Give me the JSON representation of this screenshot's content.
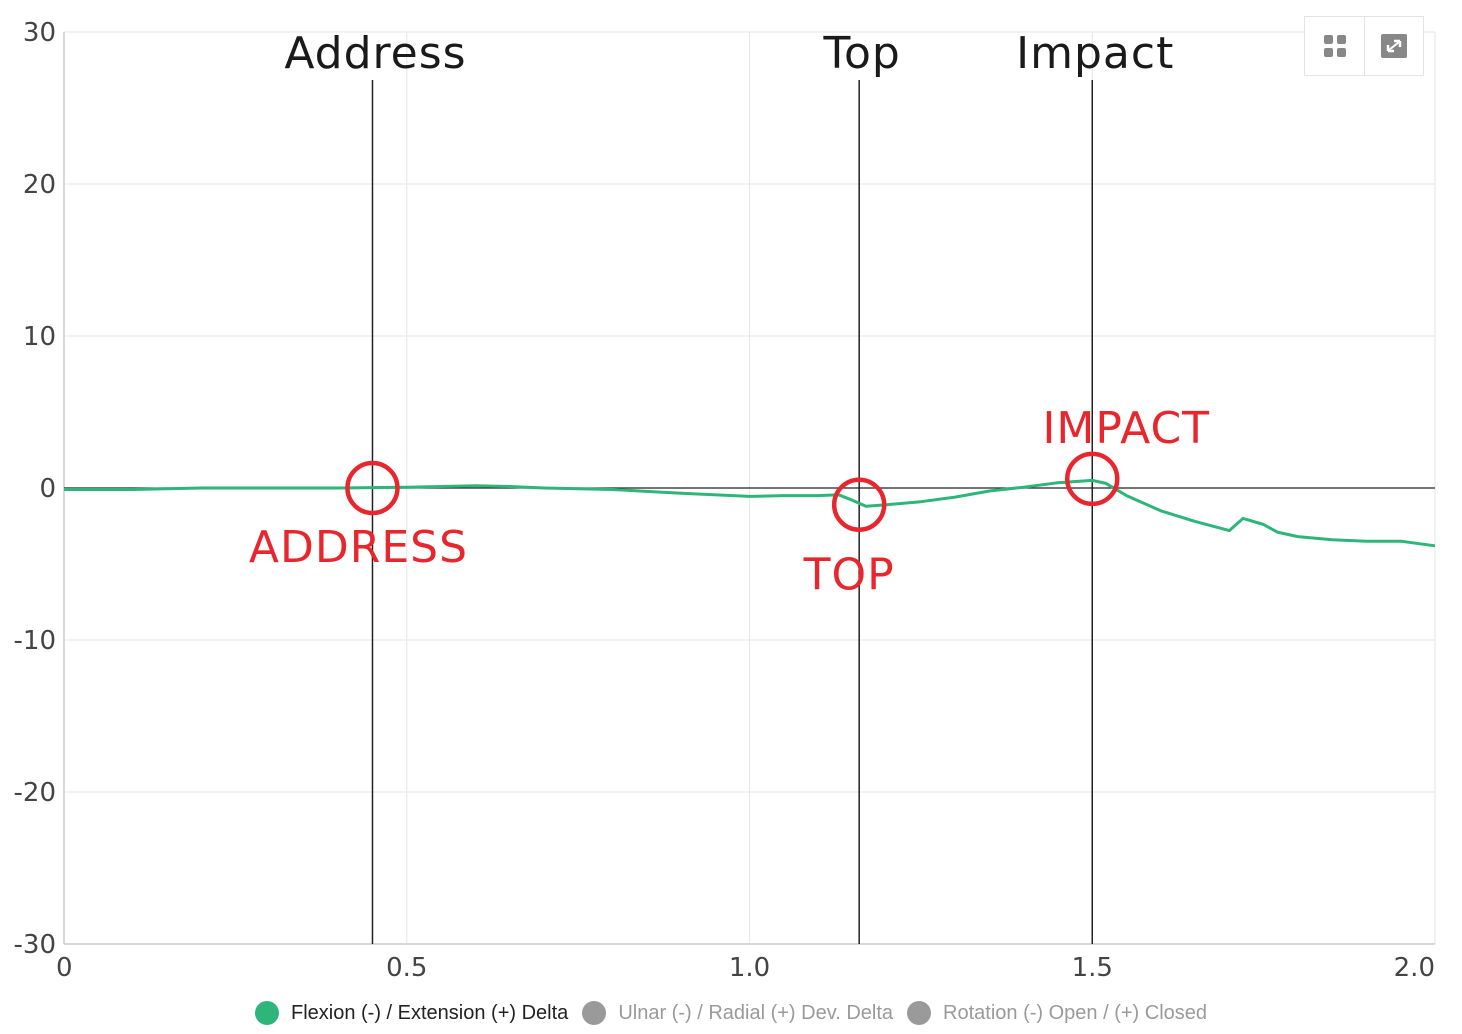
{
  "chart_data": {
    "type": "line",
    "xlim": [
      0,
      2.0
    ],
    "ylim": [
      -30,
      30
    ],
    "x_ticks": [
      "0",
      "0.5",
      "1.0",
      "1.5",
      "2.0"
    ],
    "x_tick_values": [
      0,
      0.5,
      1.0,
      1.5,
      2.0
    ],
    "y_ticks": [
      "30",
      "20",
      "10",
      "0",
      "-10",
      "-20",
      "-30"
    ],
    "y_tick_values": [
      30,
      20,
      10,
      0,
      -10,
      -20,
      -30
    ],
    "grid": true,
    "legend_position": "bottom-center",
    "series": [
      {
        "name": "Flexion (-) / Extension (+) Delta",
        "color": "#2eb57a",
        "visible": true,
        "points": [
          [
            0,
            -0.1
          ],
          [
            0.1,
            -0.1
          ],
          [
            0.2,
            0
          ],
          [
            0.3,
            0
          ],
          [
            0.4,
            0
          ],
          [
            0.5,
            0.05
          ],
          [
            0.55,
            0.1
          ],
          [
            0.6,
            0.15
          ],
          [
            0.65,
            0.1
          ],
          [
            0.7,
            0
          ],
          [
            0.8,
            -0.1
          ],
          [
            0.9,
            -0.35
          ],
          [
            1.0,
            -0.55
          ],
          [
            1.05,
            -0.5
          ],
          [
            1.1,
            -0.5
          ],
          [
            1.13,
            -0.45
          ],
          [
            1.15,
            -0.8
          ],
          [
            1.17,
            -1.2
          ],
          [
            1.2,
            -1.1
          ],
          [
            1.25,
            -0.9
          ],
          [
            1.3,
            -0.6
          ],
          [
            1.35,
            -0.2
          ],
          [
            1.4,
            0.05
          ],
          [
            1.45,
            0.35
          ],
          [
            1.5,
            0.5
          ],
          [
            1.52,
            0.3
          ],
          [
            1.55,
            -0.5
          ],
          [
            1.6,
            -1.5
          ],
          [
            1.65,
            -2.2
          ],
          [
            1.7,
            -2.8
          ],
          [
            1.72,
            -2.0
          ],
          [
            1.75,
            -2.4
          ],
          [
            1.77,
            -2.9
          ],
          [
            1.8,
            -3.2
          ],
          [
            1.85,
            -3.4
          ],
          [
            1.9,
            -3.5
          ],
          [
            1.95,
            -3.5
          ],
          [
            2.0,
            -3.8
          ]
        ]
      },
      {
        "name": "Ulnar (-) / Radial (+) Dev. Delta",
        "color": "#999999",
        "visible": false
      },
      {
        "name": "Rotation (-) Open / (+) Closed",
        "color": "#999999",
        "visible": false
      }
    ],
    "phase_markers": [
      {
        "label": "Address",
        "x": 0.45
      },
      {
        "label": "Top",
        "x": 1.16
      },
      {
        "label": "Impact",
        "x": 1.5
      }
    ],
    "annotations": [
      {
        "text": "ADDRESS",
        "x": 0.45,
        "y": 0,
        "color": "#e8262d",
        "text_position": "below"
      },
      {
        "text": "TOP",
        "x": 1.16,
        "y": -1.1,
        "color": "#e8262d",
        "text_position": "below"
      },
      {
        "text": "IMPACT",
        "x": 1.5,
        "y": 0.6,
        "color": "#e8262d",
        "text_position": "above"
      }
    ]
  },
  "toolbar": {
    "buttons": [
      {
        "icon": "grid-icon"
      },
      {
        "icon": "fullscreen-icon"
      }
    ]
  }
}
